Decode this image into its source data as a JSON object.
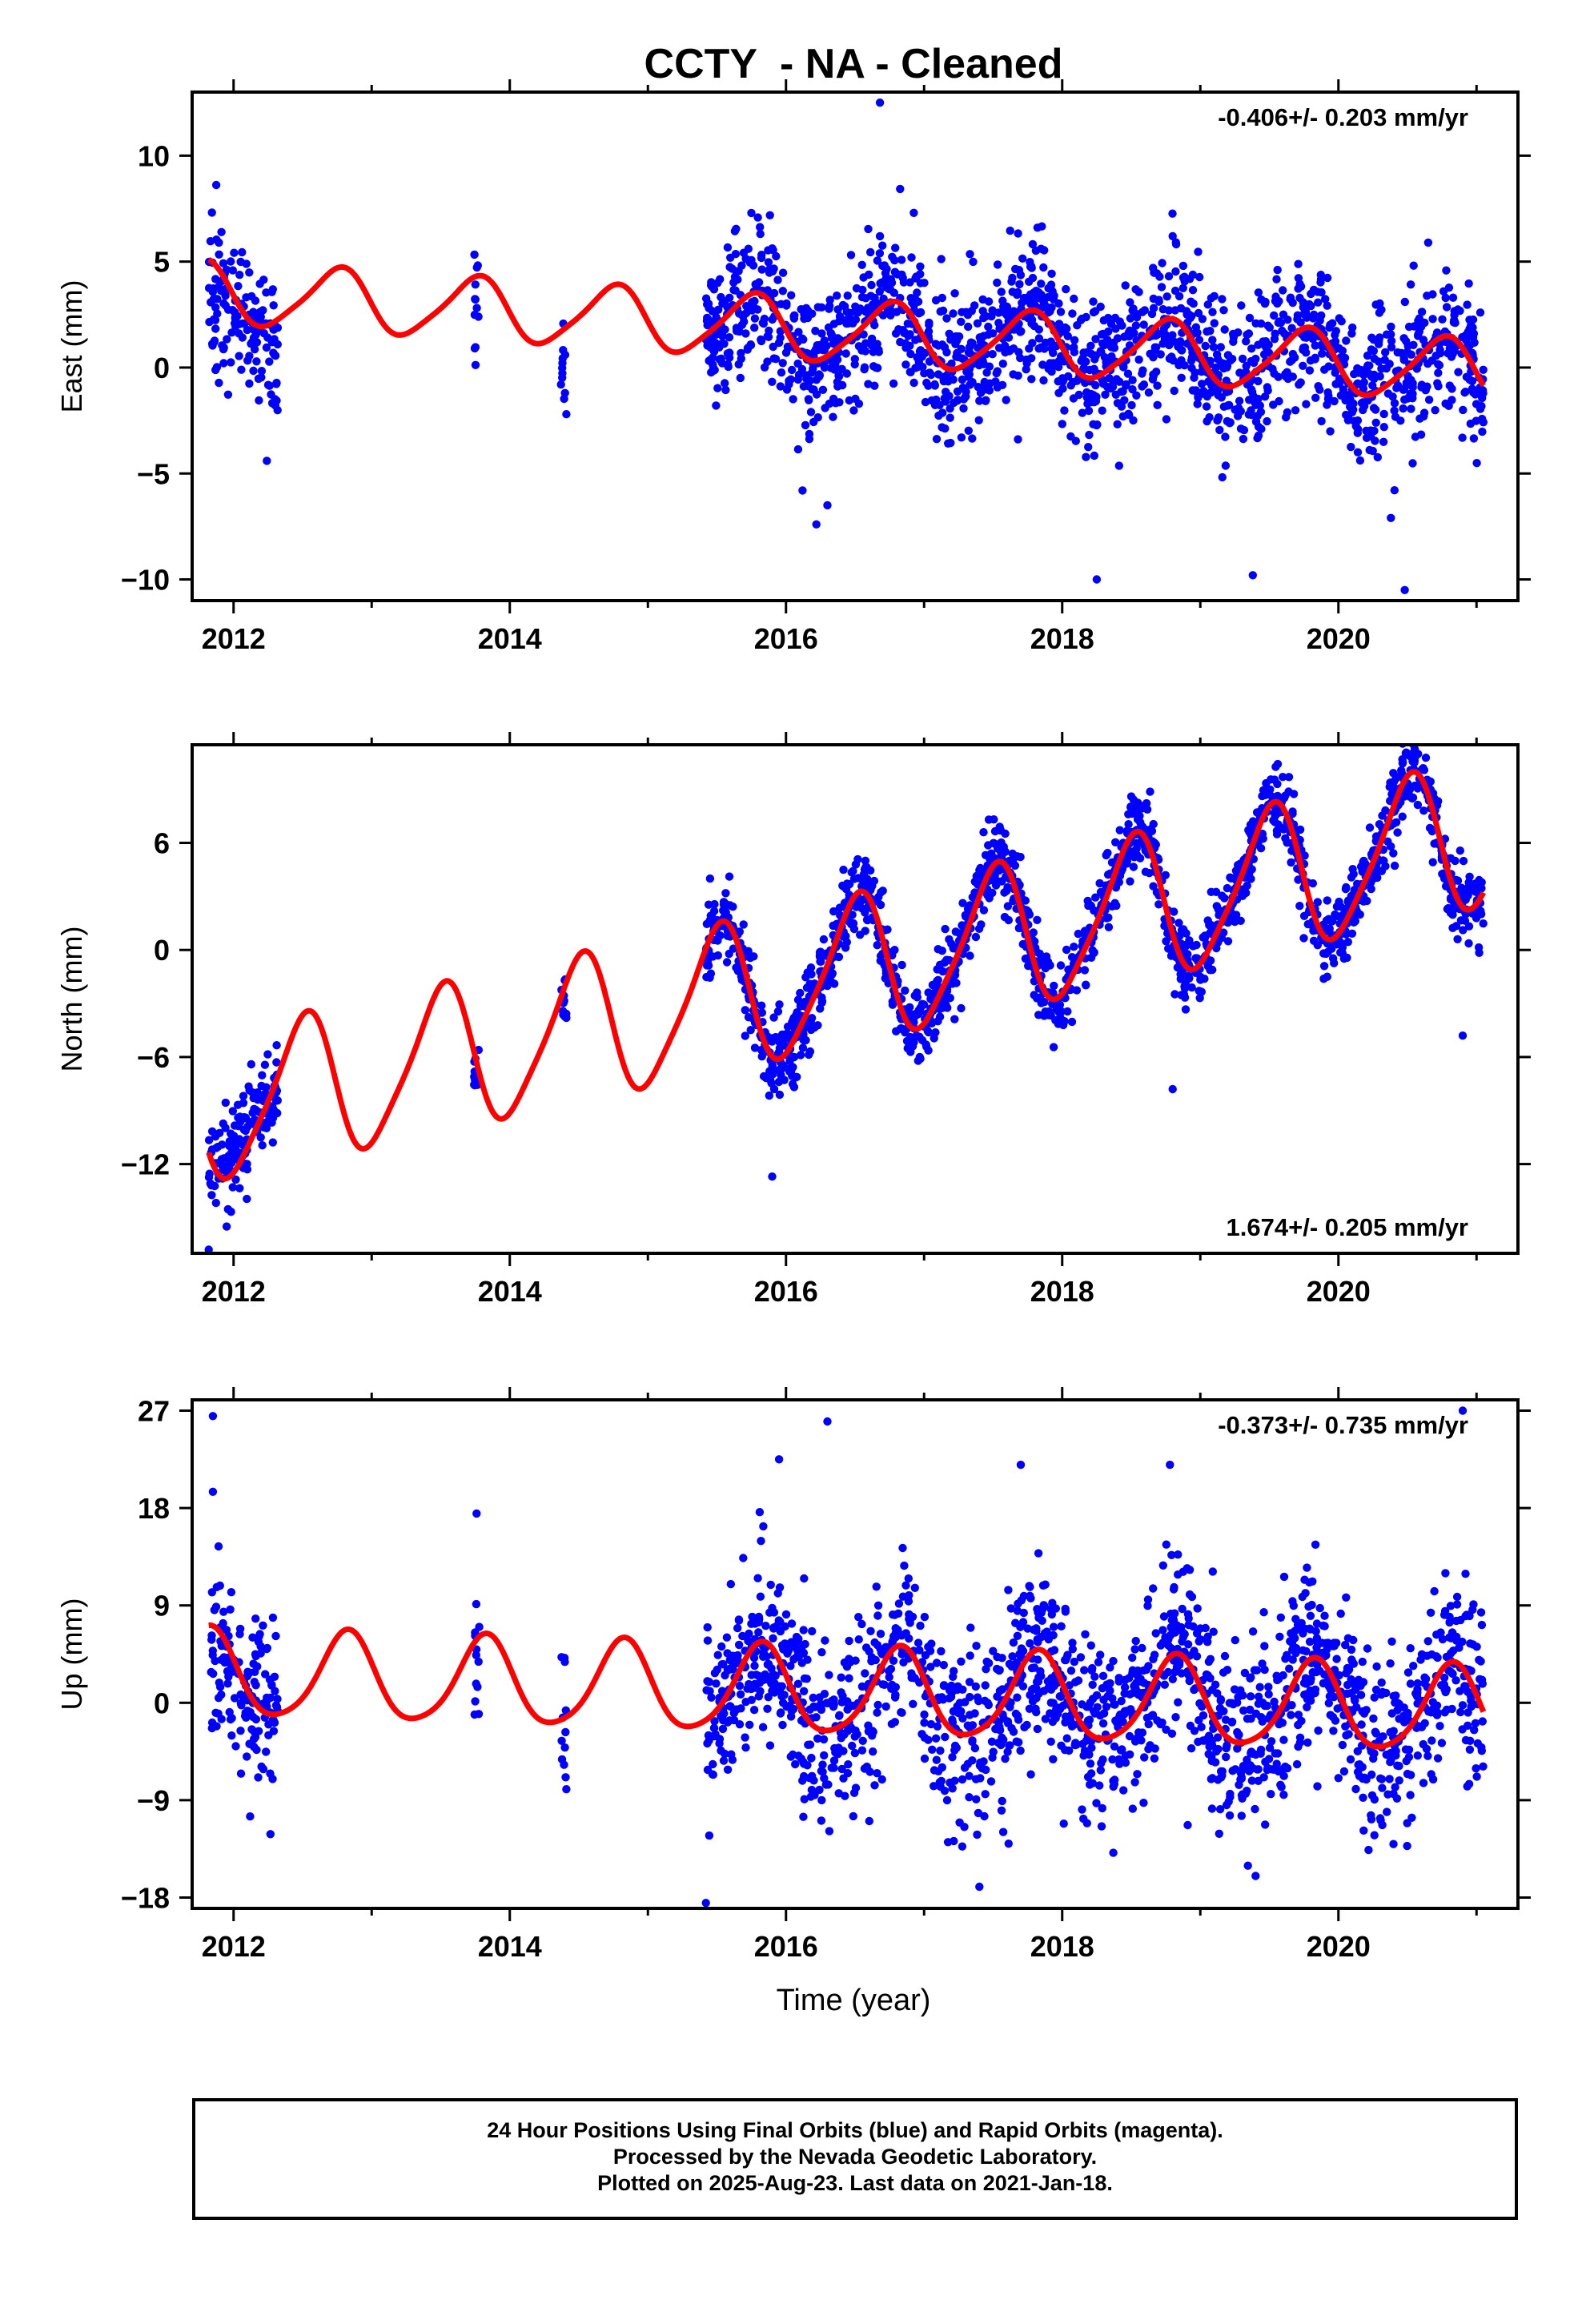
{
  "title": "CCTY  - NA - Cleaned",
  "xlabel": "Time (year)",
  "caption": {
    "line1": "24 Hour Positions Using Final Orbits (blue) and Rapid Orbits (magenta).",
    "line2": "Processed by the Nevada Geodetic Laboratory.",
    "line3": "Plotted on 2025-Aug-23. Last data on 2021-Jan-18."
  },
  "colors": {
    "final_orbits": "#0000ff",
    "model_fit": "#ff0000",
    "axis": "#000000"
  },
  "chart_data": [
    {
      "type": "scatter",
      "component": "East",
      "ylabel": "East (mm)",
      "xlim": [
        2011.7,
        2021.3
      ],
      "ylim": [
        -11,
        13
      ],
      "xticks": [
        2012,
        2014,
        2016,
        2018,
        2020
      ],
      "yticks": [
        -10,
        -5,
        0,
        5,
        10
      ],
      "rate_label": "-0.406+/- 0.203 mm/yr",
      "rate_label_position": "top-right",
      "series": [
        {
          "role": "observations",
          "color": "#0000ff",
          "segments": [
            {
              "start": 2011.82,
              "end": 2012.32,
              "mean": [
                2011.82,
                3.5,
                2012.0,
                3.0,
                2012.15,
                2.0,
                2012.32,
                0.5
              ],
              "spread": 1.6
            },
            {
              "start": 2013.74,
              "end": 2013.78,
              "mean": [
                2013.74,
                2.5,
                2013.78,
                2.6
              ],
              "spread": 1.3
            },
            {
              "start": 2014.37,
              "end": 2014.41,
              "mean": [
                2014.37,
                -0.2,
                2014.41,
                -0.3
              ],
              "spread": 1.6
            },
            {
              "start": 2015.42,
              "end": 2021.05,
              "mean": [
                2015.42,
                1.0,
                2021.05,
                -0.5
              ],
              "spread": 1.7
            }
          ],
          "outliers": [
            [
              2016.68,
              12.5
            ],
            [
              2016.68,
              6.2
            ],
            [
              2018.8,
              6.2
            ],
            [
              2020.65,
              5.9
            ],
            [
              2016.22,
              -7.4
            ],
            [
              2016.3,
              -6.5
            ],
            [
              2018.25,
              -10.0
            ],
            [
              2019.38,
              -9.8
            ],
            [
              2020.48,
              -10.5
            ],
            [
              2020.38,
              -7.1
            ],
            [
              2016.12,
              -5.8
            ]
          ]
        },
        {
          "role": "model",
          "color": "#ff0000",
          "rate": -0.406,
          "t0": 2011.82,
          "offset": 3.55,
          "annual_amp": 1.45,
          "annual_peak": 2011.75,
          "semiannual_amp": 0.25,
          "semiannual_peak": 2011.85,
          "xrange": [
            2011.82,
            2021.05
          ]
        }
      ]
    },
    {
      "type": "scatter",
      "component": "North",
      "ylabel": "North (mm)",
      "xlim": [
        2011.7,
        2021.3
      ],
      "ylim": [
        -17,
        11.5
      ],
      "xticks": [
        2012,
        2014,
        2016,
        2018,
        2020
      ],
      "yticks": [
        -12,
        -6,
        0,
        6
      ],
      "rate_label": "1.674+/- 0.205 mm/yr",
      "rate_label_position": "bottom-right",
      "series": [
        {
          "role": "observations",
          "color": "#0000ff",
          "segments": [
            {
              "start": 2011.82,
              "end": 2012.32,
              "mean": [
                2011.82,
                -12.0,
                2012.0,
                -11.0,
                2012.15,
                -9.5,
                2012.32,
                -8.0
              ],
              "spread": 1.3
            },
            {
              "start": 2013.74,
              "end": 2013.78,
              "mean": [
                2013.74,
                -6.8,
                2013.78,
                -7.2
              ],
              "spread": 0.9
            },
            {
              "start": 2014.37,
              "end": 2014.41,
              "mean": [
                2014.37,
                -3.0,
                2014.41,
                -3.5
              ],
              "spread": 1.1
            },
            {
              "start": 2015.42,
              "end": 2021.05,
              "mean": [
                2015.42,
                0.0,
                2021.05,
                2.5
              ],
              "spread": 1.1
            }
          ],
          "outliers": [
            [
              2011.82,
              -16.8
            ],
            [
              2011.95,
              -15.5
            ],
            [
              2015.9,
              -12.7
            ],
            [
              2018.8,
              -7.8
            ],
            [
              2020.9,
              -4.8
            ],
            [
              2015.45,
              4.0
            ],
            [
              2018.5,
              8.6
            ],
            [
              2020.55,
              10.5
            ]
          ]
        },
        {
          "role": "model",
          "color": "#ff0000",
          "rate": 1.674,
          "t0": 2011.82,
          "offset": -9.0,
          "annual_amp": 4.0,
          "annual_peak": 2011.5,
          "semiannual_amp": 0.7,
          "semiannual_peak": 2011.6,
          "xrange": [
            2011.82,
            2021.05
          ]
        }
      ]
    },
    {
      "type": "scatter",
      "component": "Up",
      "ylabel": "Up (mm)",
      "xlim": [
        2011.7,
        2021.3
      ],
      "ylim": [
        -19,
        28
      ],
      "xticks": [
        2012,
        2014,
        2016,
        2018,
        2020
      ],
      "yticks": [
        -18,
        -9,
        0,
        9,
        18,
        27
      ],
      "rate_label": "-0.373+/- 0.735 mm/yr",
      "rate_label_position": "top-right",
      "series": [
        {
          "role": "observations",
          "color": "#0000ff",
          "segments": [
            {
              "start": 2011.82,
              "end": 2012.32,
              "mean": [
                2011.82,
                6.0,
                2012.0,
                3.0,
                2012.15,
                1.0,
                2012.32,
                -1.5
              ],
              "spread": 4.0
            },
            {
              "start": 2013.74,
              "end": 2013.78,
              "mean": [
                2013.74,
                4.0,
                2013.78,
                3.5
              ],
              "spread": 3.5
            },
            {
              "start": 2014.37,
              "end": 2014.41,
              "mean": [
                2014.37,
                -2.0,
                2014.41,
                -3.0
              ],
              "spread": 4.0
            },
            {
              "start": 2015.42,
              "end": 2021.05,
              "mean": [
                2015.42,
                -1.0,
                2021.05,
                -1.0
              ],
              "spread": 4.2
            }
          ],
          "outliers": [
            [
              2011.85,
              26.5
            ],
            [
              2011.85,
              19.5
            ],
            [
              2016.3,
              26.0
            ],
            [
              2015.95,
              22.5
            ],
            [
              2017.7,
              22.0
            ],
            [
              2018.78,
              22.0
            ],
            [
              2020.9,
              27.0
            ],
            [
              2013.76,
              17.5
            ],
            [
              2015.42,
              -18.5
            ],
            [
              2017.4,
              -17.0
            ],
            [
              2019.4,
              -16.0
            ],
            [
              2012.12,
              -10.5
            ]
          ]
        },
        {
          "role": "model",
          "color": "#ff0000",
          "rate": -0.373,
          "t0": 2011.82,
          "offset": 2.6,
          "annual_amp": 4.0,
          "annual_peak": 2011.82,
          "semiannual_amp": 0.6,
          "semiannual_peak": 2011.85,
          "xrange": [
            2011.82,
            2021.05
          ]
        }
      ]
    }
  ]
}
